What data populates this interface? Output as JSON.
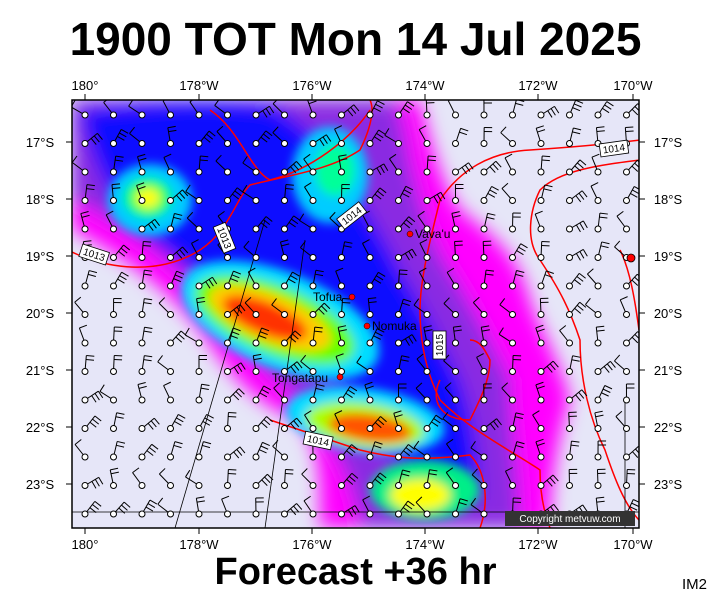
{
  "title": "1900 TOT Mon 14 Jul 2025",
  "subtitle": "Forecast +36 hr",
  "image_code": "IM2",
  "copyright": "Copyright metvuw.com",
  "axes": {
    "longitude_labels": [
      "180°",
      "178°W",
      "176°W",
      "174°W",
      "172°W",
      "170°W"
    ],
    "latitude_labels": [
      "17°S",
      "18°S",
      "19°S",
      "20°S",
      "21°S",
      "22°S",
      "23°S"
    ]
  },
  "places": [
    {
      "name": "Vava'u"
    },
    {
      "name": "Tofua"
    },
    {
      "name": "Nomuka"
    },
    {
      "name": "Tongatapu"
    }
  ],
  "isobar_labels": [
    "1014",
    "1014",
    "1013",
    "1013",
    "1015",
    "1014"
  ],
  "colors": {
    "background": "#e6e6f8",
    "isobar": "#ff0000",
    "rain_scale": [
      "#ff00ff",
      "#8a2be2",
      "#0000ff",
      "#00bfff",
      "#00ffff",
      "#00ff66",
      "#aaff00",
      "#ffff00",
      "#ff9900",
      "#ff3300"
    ]
  }
}
